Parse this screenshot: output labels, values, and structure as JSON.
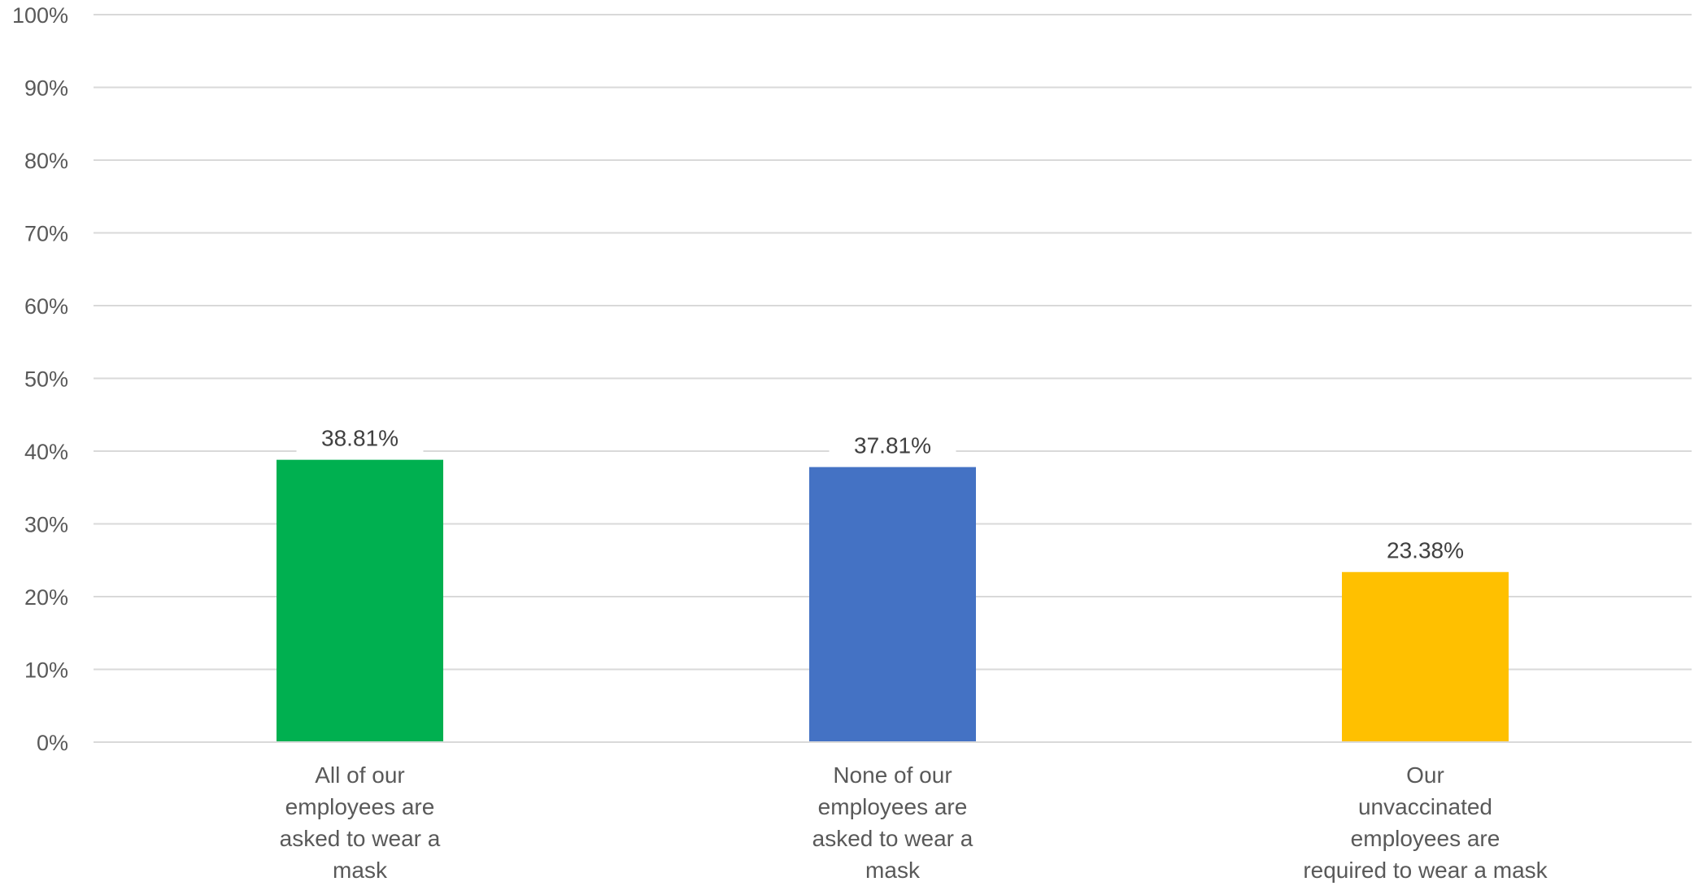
{
  "chart_data": {
    "type": "bar",
    "title": "",
    "xlabel": "",
    "ylabel": "",
    "ylim": [
      0,
      100
    ],
    "yticks": [
      0,
      10,
      20,
      30,
      40,
      50,
      60,
      70,
      80,
      90,
      100
    ],
    "ytick_labels": [
      "0%",
      "10%",
      "20%",
      "30%",
      "40%",
      "50%",
      "60%",
      "70%",
      "80%",
      "90%",
      "100%"
    ],
    "grid": true,
    "legend": "none",
    "categories": [
      [
        "All of our",
        "employees are",
        "asked to wear a",
        "mask"
      ],
      [
        "None of our",
        "employees are",
        "asked to wear a",
        "mask"
      ],
      [
        "Our",
        "unvaccinated",
        "employees are",
        "required to wear a mask"
      ]
    ],
    "values": [
      38.81,
      37.81,
      23.38
    ],
    "data_labels": [
      "38.81%",
      "37.81%",
      "23.38%"
    ],
    "colors": [
      "#00b050",
      "#4472c4",
      "#ffc000"
    ]
  }
}
